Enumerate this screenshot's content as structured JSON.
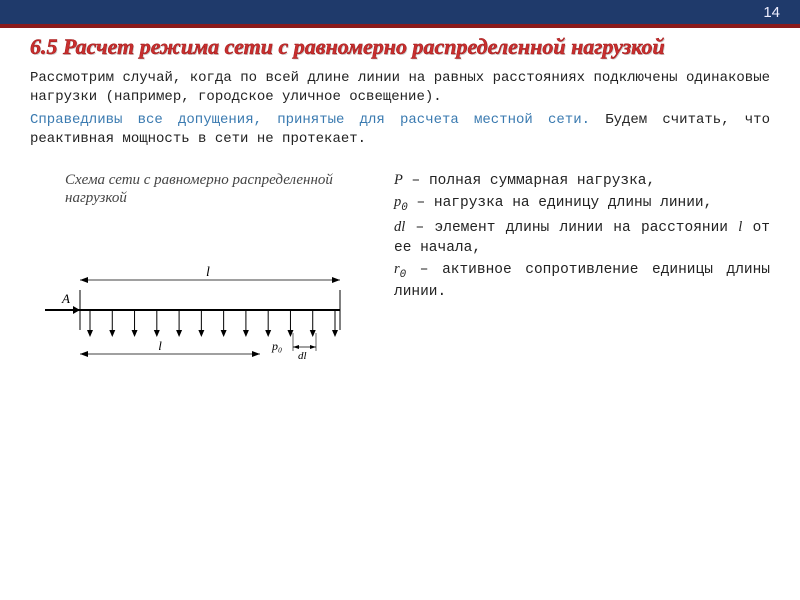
{
  "page_number": "14",
  "title": "6.5 Расчет режима сети с равномерно распределенной нагрузкой",
  "para1": "Рассмотрим случай, когда по всей длине линии на равных расстояниях подключены одинаковые нагрузки (например, городское уличное освещение).",
  "para2_a": "Справедливы все допущения, принятые для расчета местной сети.",
  "para2_b": " Будем считать, что реактивная мощность в сети не протекает.",
  "caption": "Схема сети с равномерно распределенной нагрузкой",
  "diagram": {
    "label_A": "A",
    "label_L_top": "l",
    "label_l_bot": "l",
    "label_p0": "p₀",
    "label_dl": "dl",
    "stroke": "#000000",
    "n_arrows": 12
  },
  "defs": {
    "P_sym": "P",
    "P_txt": " – полная суммарная нагрузка,",
    "p0_sym": "p",
    "p0_sub": "0",
    "p0_txt": " – нагрузка на единицу длины линии,",
    "dl_sym": "dl",
    "dl_txt": " – элемент длины линии на расстоянии ",
    "dl_l": "l",
    "dl_txt2": " от ее начала,",
    "r0_sym": "r",
    "r0_sub": "0",
    "r0_txt": " – активное сопротивление единицы длины линии."
  },
  "colors": {
    "header_bg": "#1f3a6b",
    "header_border": "#8a1a1a",
    "title_color": "#c92f2f",
    "blue": "#3a7ab0"
  }
}
